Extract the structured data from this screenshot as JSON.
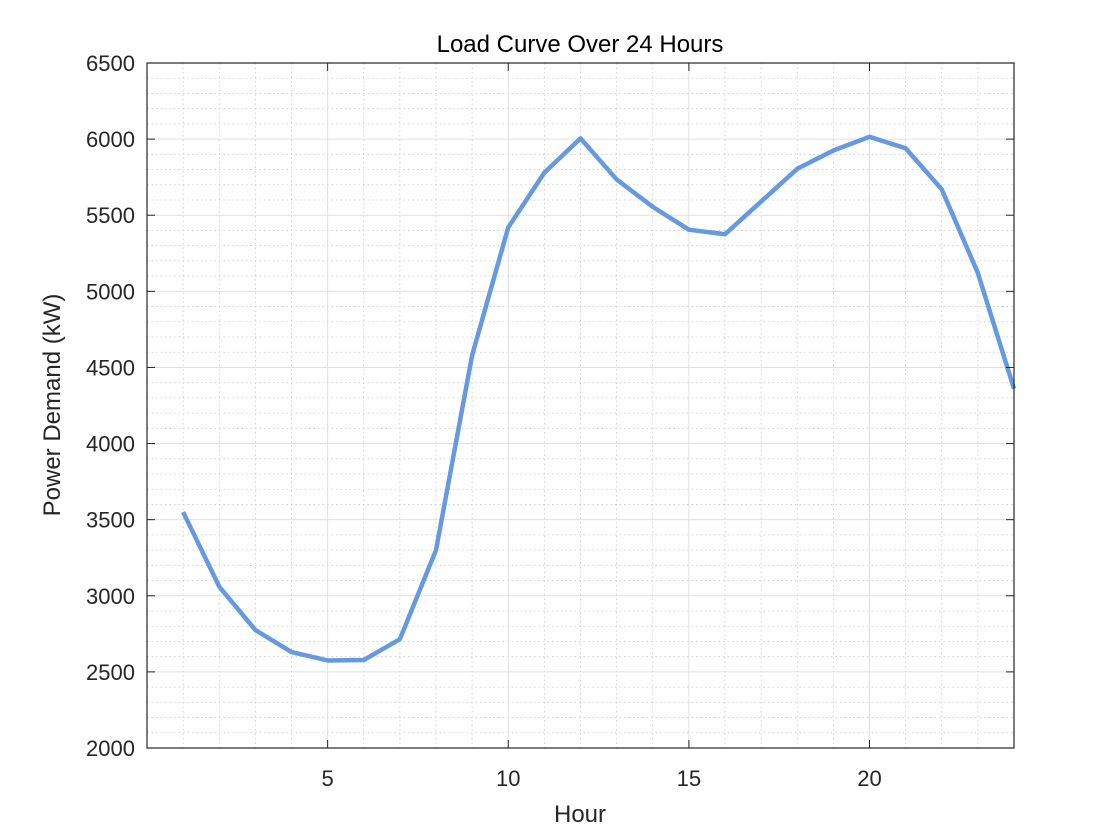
{
  "chart_data": {
    "type": "line",
    "title": "Load Curve Over 24 Hours",
    "xlabel": "Hour",
    "ylabel": "Power Demand (kW)",
    "xlim": [
      0,
      24
    ],
    "ylim": [
      2000,
      6500
    ],
    "xticks": [
      5,
      10,
      15,
      20
    ],
    "yticks": [
      2000,
      2500,
      3000,
      3500,
      4000,
      4500,
      5000,
      5500,
      6000,
      6500
    ],
    "grid": "on (major and minor)",
    "series": [
      {
        "color": "#6699e0",
        "x": [
          1,
          2,
          3,
          4,
          5,
          6,
          7,
          8,
          9,
          10,
          11,
          12,
          13,
          14,
          15,
          16,
          17,
          18,
          19,
          20,
          21,
          22,
          23,
          24
        ],
        "y": [
          3550,
          3060,
          2775,
          2630,
          2575,
          2578,
          2715,
          3300,
          4580,
          5420,
          5780,
          6005,
          5735,
          5555,
          5405,
          5375,
          5590,
          5805,
          5925,
          6015,
          5940,
          5670,
          5120,
          4360
        ]
      }
    ]
  }
}
